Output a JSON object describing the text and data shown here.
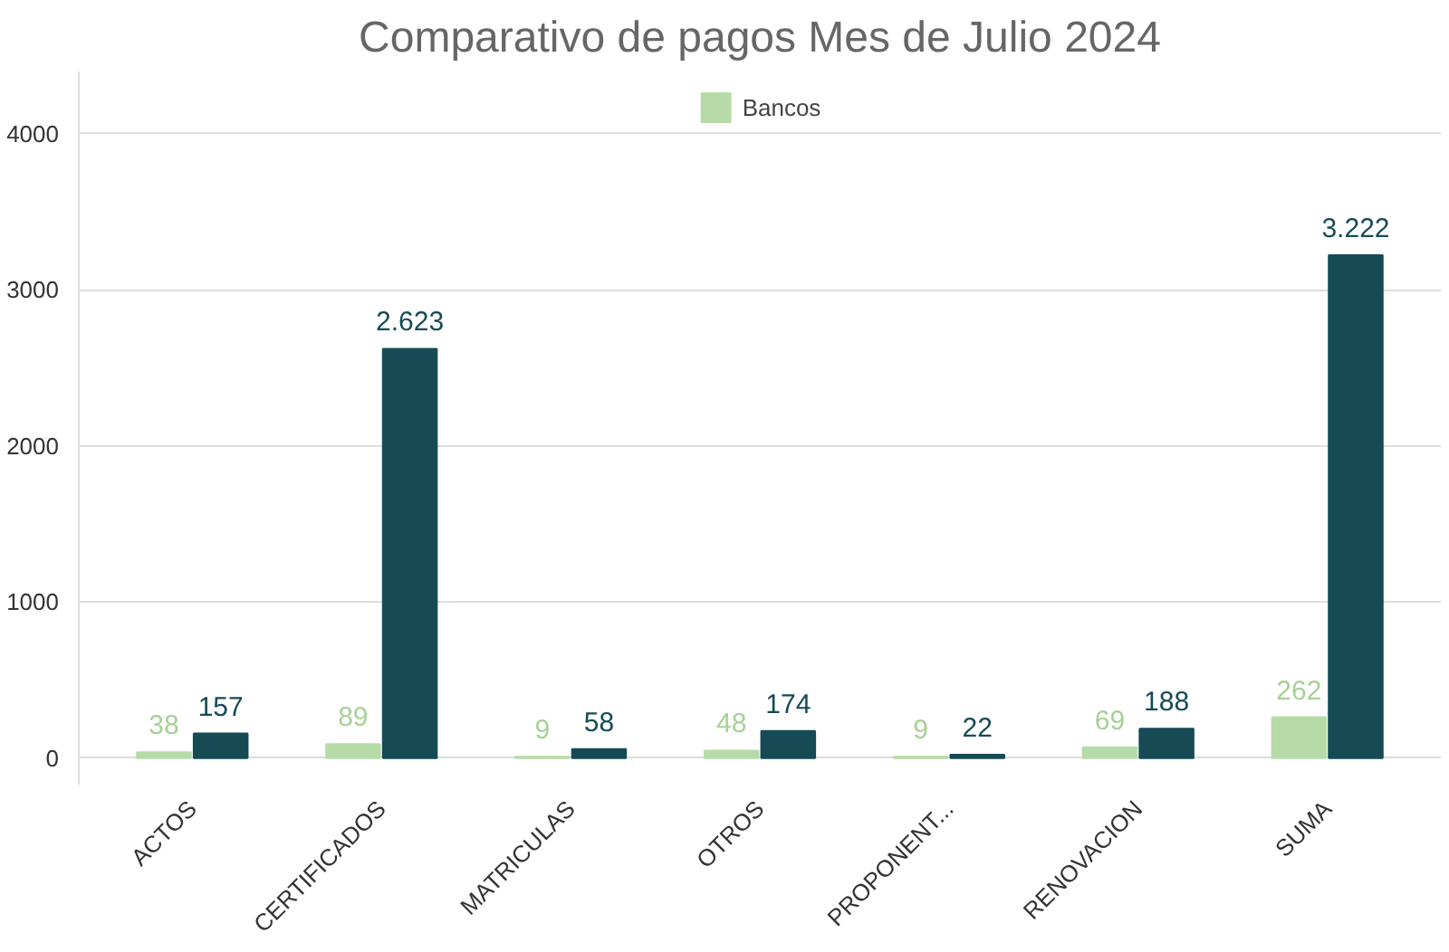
{
  "chart_data": {
    "type": "bar",
    "title": "Comparativo de pagos Mes de Julio 2024",
    "categories": [
      "ACTOS",
      "CERTIFICADOS",
      "MATRICULAS",
      "OTROS",
      "PROPONENT...",
      "RENOVACION",
      "SUMA"
    ],
    "series": [
      {
        "name": "Bancos",
        "color": "#b7dba8",
        "values": [
          38,
          89,
          9,
          48,
          9,
          69,
          262
        ],
        "value_labels": [
          "38",
          "89",
          "9",
          "48",
          "9",
          "69",
          "262"
        ]
      },
      {
        "color": "#164b55",
        "values": [
          157,
          2623,
          58,
          174,
          22,
          188,
          3222
        ],
        "value_labels": [
          "157",
          "2.623",
          "58",
          "174",
          "22",
          "188",
          "3.222"
        ]
      }
    ],
    "ylim": [
      -170,
      4400
    ],
    "yticks": [
      0,
      1000,
      2000,
      3000,
      4000
    ],
    "grid": "y",
    "legend": "top"
  }
}
